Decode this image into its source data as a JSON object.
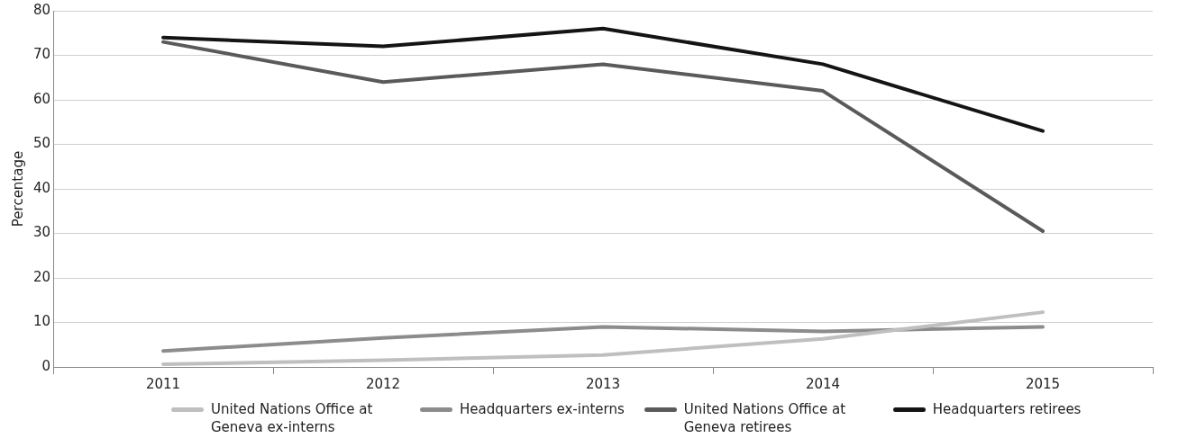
{
  "chart_data": {
    "type": "line",
    "ylabel": "Percentage",
    "categories": [
      "2011",
      "2012",
      "2013",
      "2014",
      "2015"
    ],
    "series": [
      {
        "name": "United Nations Office at Geneva ex-interns",
        "color": "#bfbfbf",
        "values": [
          0.6,
          1.5,
          2.7,
          6.3,
          12.3
        ]
      },
      {
        "name": "Headquarters ex-interns",
        "color": "#8c8c8c",
        "values": [
          3.6,
          6.5,
          9,
          8,
          9
        ]
      },
      {
        "name": "United Nations Office at Geneva retirees",
        "color": "#5a5a5a",
        "values": [
          73,
          64,
          68,
          62,
          30.5
        ]
      },
      {
        "name": "Headquarters retirees",
        "color": "#141414",
        "values": [
          74,
          72,
          76,
          68,
          53
        ]
      }
    ],
    "ylim": [
      0,
      80
    ],
    "yticks": [
      0,
      10,
      20,
      30,
      40,
      50,
      60,
      70,
      80
    ],
    "grid": "y",
    "legend": "bottom",
    "marker": "none",
    "line_style": "solid"
  }
}
